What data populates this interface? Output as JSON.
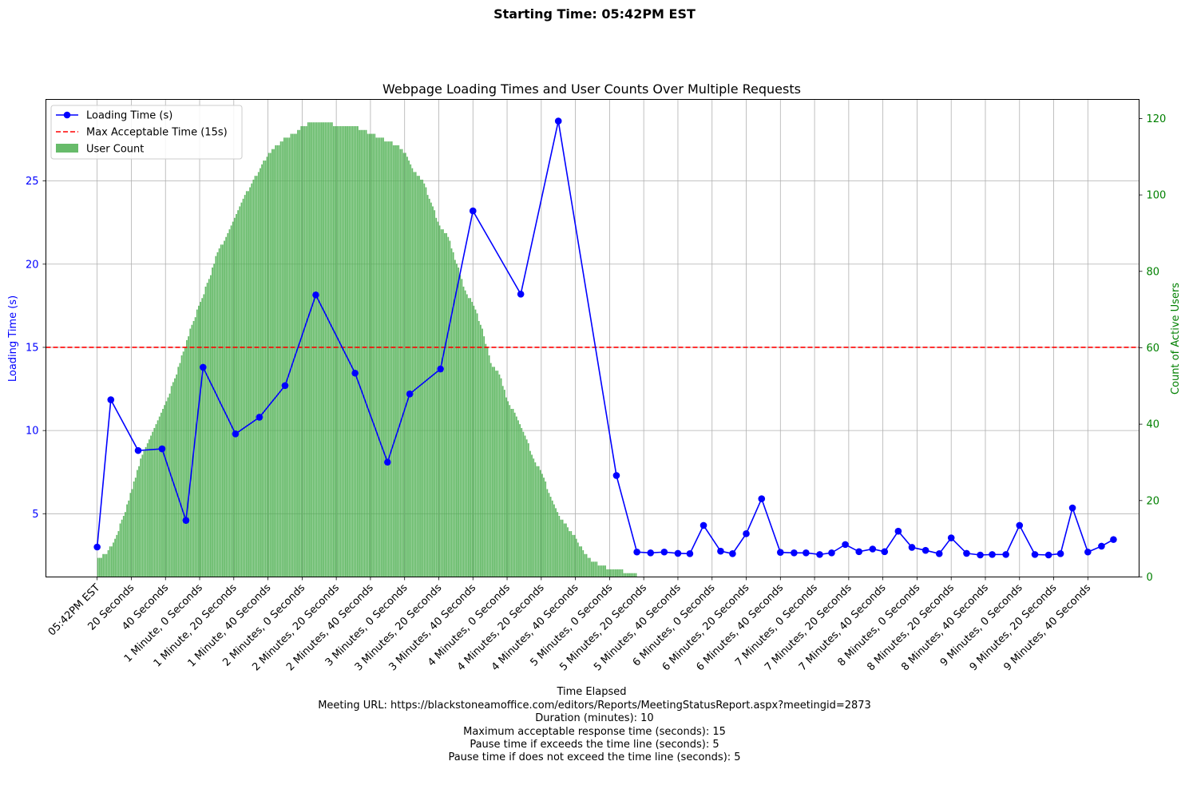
{
  "figure": {
    "suptitle": "Starting Time: 05:42PM EST",
    "footer_lines": [
      "Meeting URL: https://blackstoneamoffice.com/editors/Reports/MeetingStatusReport.aspx?meetingid=2873",
      "Duration (minutes): 10",
      "Maximum acceptable response time (seconds): 15",
      "Pause time if exceeds the time line (seconds): 5",
      "Pause time if does not exceed the time line (seconds): 5"
    ]
  },
  "chart_data": {
    "type": "bar+line",
    "title": "Webpage Loading Times and User Counts Over Multiple Requests",
    "xlabel": "Time Elapsed",
    "ylabel_left": "Loading Time (s)",
    "ylabel_right": "Count of Active Users",
    "xlim_seconds": [
      -30,
      610
    ],
    "ylim_left": [
      1.2,
      29.9
    ],
    "ylim_right": [
      0,
      125
    ],
    "yticks_left": [
      5,
      10,
      15,
      20,
      25
    ],
    "yticks_right": [
      0,
      20,
      40,
      60,
      80,
      100,
      120
    ],
    "xticks": [
      {
        "s": 0,
        "label": "05:42PM EST"
      },
      {
        "s": 20,
        "label": "20 Seconds"
      },
      {
        "s": 40,
        "label": "40 Seconds"
      },
      {
        "s": 60,
        "label": "1 Minute, 0 Seconds"
      },
      {
        "s": 80,
        "label": "1 Minute, 20 Seconds"
      },
      {
        "s": 100,
        "label": "1 Minute, 40 Seconds"
      },
      {
        "s": 120,
        "label": "2 Minutes, 0 Seconds"
      },
      {
        "s": 140,
        "label": "2 Minutes, 20 Seconds"
      },
      {
        "s": 160,
        "label": "2 Minutes, 40 Seconds"
      },
      {
        "s": 180,
        "label": "3 Minutes, 0 Seconds"
      },
      {
        "s": 200,
        "label": "3 Minutes, 20 Seconds"
      },
      {
        "s": 220,
        "label": "3 Minutes, 40 Seconds"
      },
      {
        "s": 240,
        "label": "4 Minutes, 0 Seconds"
      },
      {
        "s": 260,
        "label": "4 Minutes, 20 Seconds"
      },
      {
        "s": 280,
        "label": "4 Minutes, 40 Seconds"
      },
      {
        "s": 300,
        "label": "5 Minutes, 0 Seconds"
      },
      {
        "s": 320,
        "label": "5 Minutes, 20 Seconds"
      },
      {
        "s": 340,
        "label": "5 Minutes, 40 Seconds"
      },
      {
        "s": 360,
        "label": "6 Minutes, 0 Seconds"
      },
      {
        "s": 380,
        "label": "6 Minutes, 20 Seconds"
      },
      {
        "s": 400,
        "label": "6 Minutes, 40 Seconds"
      },
      {
        "s": 420,
        "label": "7 Minutes, 0 Seconds"
      },
      {
        "s": 440,
        "label": "7 Minutes, 20 Seconds"
      },
      {
        "s": 460,
        "label": "7 Minutes, 40 Seconds"
      },
      {
        "s": 480,
        "label": "8 Minutes, 0 Seconds"
      },
      {
        "s": 500,
        "label": "8 Minutes, 20 Seconds"
      },
      {
        "s": 520,
        "label": "8 Minutes, 40 Seconds"
      },
      {
        "s": 540,
        "label": "9 Minutes, 0 Seconds"
      },
      {
        "s": 560,
        "label": "9 Minutes, 20 Seconds"
      },
      {
        "s": 580,
        "label": "9 Minutes, 40 Seconds"
      }
    ],
    "grid": true,
    "legend": {
      "position": "upper-left",
      "entries": [
        "Loading Time (s)",
        "Max Acceptable Time (15s)",
        "User Count"
      ]
    },
    "threshold": {
      "name": "Max Acceptable Time (15s)",
      "value": 15,
      "color": "#ff0000",
      "style": "dashed"
    },
    "loading_series": {
      "name": "Loading Time (s)",
      "color": "#0000ff",
      "points": [
        [
          0,
          3.0
        ],
        [
          8,
          11.85
        ],
        [
          24,
          8.8
        ],
        [
          38,
          8.9
        ],
        [
          52,
          4.6
        ],
        [
          62,
          13.8
        ],
        [
          81,
          9.8
        ],
        [
          95,
          10.8
        ],
        [
          110,
          12.7
        ],
        [
          128,
          18.15
        ],
        [
          151,
          13.45
        ],
        [
          170,
          8.1
        ],
        [
          183,
          12.2
        ],
        [
          201,
          13.7
        ],
        [
          220,
          23.2
        ],
        [
          248,
          18.2
        ],
        [
          270,
          28.6
        ],
        [
          304,
          7.3
        ],
        [
          316,
          2.7
        ],
        [
          324,
          2.65
        ],
        [
          332,
          2.7
        ],
        [
          340,
          2.62
        ],
        [
          347,
          2.6
        ],
        [
          355,
          4.3
        ],
        [
          365,
          2.75
        ],
        [
          372,
          2.6
        ],
        [
          380,
          3.8
        ],
        [
          389,
          5.9
        ],
        [
          400,
          2.68
        ],
        [
          408,
          2.65
        ],
        [
          415,
          2.65
        ],
        [
          423,
          2.55
        ],
        [
          430,
          2.65
        ],
        [
          438,
          3.15
        ],
        [
          446,
          2.72
        ],
        [
          454,
          2.88
        ],
        [
          461,
          2.72
        ],
        [
          469,
          3.95
        ],
        [
          477,
          2.98
        ],
        [
          485,
          2.8
        ],
        [
          493,
          2.6
        ],
        [
          500,
          3.55
        ],
        [
          509,
          2.62
        ],
        [
          517,
          2.52
        ],
        [
          524,
          2.55
        ],
        [
          532,
          2.55
        ],
        [
          540,
          4.3
        ],
        [
          549,
          2.55
        ],
        [
          557,
          2.52
        ],
        [
          564,
          2.6
        ],
        [
          571,
          5.35
        ],
        [
          580,
          2.7
        ],
        [
          588,
          3.05
        ],
        [
          595,
          3.45
        ]
      ]
    },
    "user_series": {
      "name": "User Count",
      "color": "#4caf50",
      "bar_width_s": 1,
      "profile": [
        [
          0,
          5
        ],
        [
          5,
          6
        ],
        [
          10,
          10
        ],
        [
          15,
          16
        ],
        [
          20,
          23
        ],
        [
          25,
          31
        ],
        [
          30,
          36
        ],
        [
          35,
          41
        ],
        [
          40,
          46
        ],
        [
          45,
          52
        ],
        [
          50,
          59
        ],
        [
          55,
          66
        ],
        [
          60,
          72
        ],
        [
          65,
          78
        ],
        [
          70,
          85
        ],
        [
          75,
          89
        ],
        [
          80,
          94
        ],
        [
          85,
          99
        ],
        [
          90,
          103
        ],
        [
          95,
          107
        ],
        [
          100,
          111
        ],
        [
          105,
          113
        ],
        [
          110,
          115
        ],
        [
          115,
          116
        ],
        [
          120,
          118
        ],
        [
          125,
          119
        ],
        [
          130,
          119
        ],
        [
          135,
          119
        ],
        [
          140,
          118
        ],
        [
          145,
          118
        ],
        [
          150,
          118
        ],
        [
          155,
          117
        ],
        [
          160,
          116
        ],
        [
          165,
          115
        ],
        [
          170,
          114
        ],
        [
          175,
          113
        ],
        [
          180,
          111
        ],
        [
          185,
          106
        ],
        [
          190,
          104
        ],
        [
          195,
          98
        ],
        [
          200,
          92
        ],
        [
          205,
          89
        ],
        [
          210,
          82
        ],
        [
          215,
          75
        ],
        [
          220,
          71
        ],
        [
          225,
          65
        ],
        [
          230,
          56
        ],
        [
          235,
          53
        ],
        [
          240,
          46
        ],
        [
          245,
          42
        ],
        [
          250,
          37
        ],
        [
          255,
          31
        ],
        [
          260,
          27
        ],
        [
          265,
          21
        ],
        [
          270,
          16
        ],
        [
          275,
          13
        ],
        [
          280,
          10
        ],
        [
          285,
          6
        ],
        [
          290,
          4
        ],
        [
          295,
          3
        ],
        [
          300,
          2
        ],
        [
          305,
          2
        ],
        [
          310,
          1
        ],
        [
          315,
          1
        ],
        [
          316,
          0
        ]
      ]
    }
  }
}
